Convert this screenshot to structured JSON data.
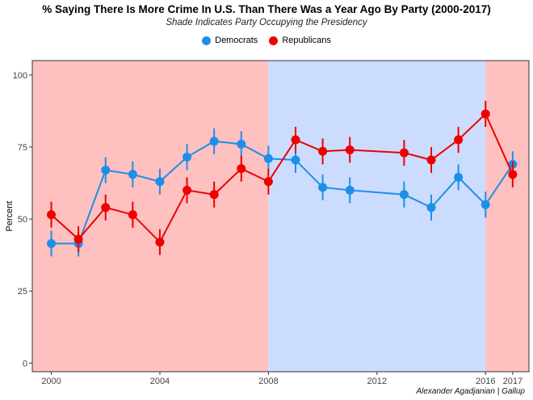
{
  "chart_data": {
    "type": "line",
    "title": "% Saying There Is More Crime In U.S. Than There Was a Year Ago By Party (2000-2017)",
    "subtitle": "Shade Indicates Party Occupying the Presidency",
    "xlabel": "",
    "ylabel": "Percent",
    "xlim": [
      1999.3,
      2017.6
    ],
    "ylim": [
      -3,
      105
    ],
    "x_ticks": [
      2000,
      2004,
      2008,
      2012,
      2016,
      2017
    ],
    "y_ticks": [
      0,
      25,
      50,
      75,
      100
    ],
    "grid": false,
    "legend_position": "top-center",
    "caption": "Alexander Agadjanian | Gallup",
    "shading": [
      {
        "party": "Republicans",
        "from": 1999.3,
        "to": 2008,
        "color": "#ffc0c0"
      },
      {
        "party": "Democrats",
        "from": 2008,
        "to": 2016,
        "color": "#ccdcff"
      },
      {
        "party": "Republicans",
        "from": 2016,
        "to": 2017.6,
        "color": "#ffc0c0"
      }
    ],
    "series": [
      {
        "name": "Democrats",
        "color": "#1e8fe8",
        "x": [
          2000,
          2001,
          2002,
          2003,
          2004,
          2005,
          2006,
          2007,
          2008,
          2009,
          2010,
          2011,
          2013,
          2014,
          2015,
          2016,
          2017
        ],
        "y": [
          41.5,
          41.5,
          67,
          65.5,
          63,
          71.5,
          77,
          76,
          71,
          70.5,
          61,
          60,
          58.5,
          54,
          64.5,
          55,
          69
        ],
        "err": [
          4.5,
          4.5,
          4.5,
          4.5,
          4.5,
          4.5,
          4.5,
          4.5,
          4.5,
          4.5,
          4.5,
          4.5,
          4.5,
          4.5,
          4.5,
          4.5,
          4.5
        ]
      },
      {
        "name": "Republicans",
        "color": "#ee0000",
        "x": [
          2000,
          2001,
          2002,
          2003,
          2004,
          2005,
          2006,
          2007,
          2008,
          2009,
          2010,
          2011,
          2013,
          2014,
          2015,
          2016,
          2017
        ],
        "y": [
          51.5,
          43,
          54,
          51.5,
          42,
          60,
          58.5,
          67.5,
          63,
          77.5,
          73.5,
          74,
          73,
          70.5,
          77.5,
          86.5,
          65.5
        ],
        "err": [
          4.5,
          4.5,
          4.5,
          4.5,
          4.5,
          4.5,
          4.5,
          4.5,
          4.5,
          4.5,
          4.5,
          4.5,
          4.5,
          4.5,
          4.5,
          4.5,
          4.5
        ]
      }
    ]
  }
}
